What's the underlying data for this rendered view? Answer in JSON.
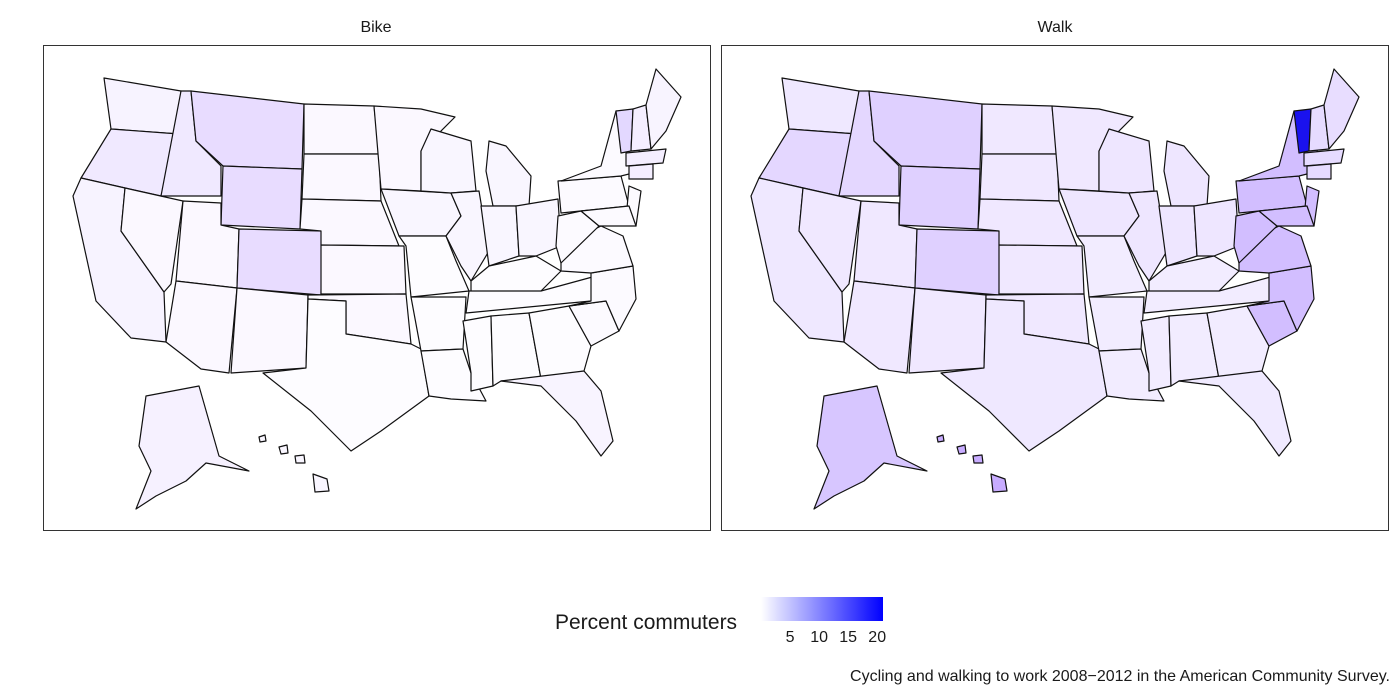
{
  "facets": [
    {
      "title": "Bike",
      "fills": {
        "pacific": "#f7f3ff",
        "northwest": "#f0e9ff",
        "mountain": "#e8dcff",
        "plains": "#fbf8ff",
        "south": "#fdfcff",
        "midwest": "#f9f6ff",
        "east": "#fcfaff",
        "newengland": "#f4eeff",
        "vermont": "#e3d8ff",
        "maine": "#f8f4ff",
        "texas": "#fdfcff",
        "alaska": "#f6f1ff",
        "hawaii": "#f9f6ff",
        "florida": "#f8f4ff"
      }
    },
    {
      "title": "Walk",
      "fills": {
        "pacific": "#efe8ff",
        "northwest": "#e4d7ff",
        "mountain": "#dfd0ff",
        "plains": "#f0e8ff",
        "south": "#f2ecff",
        "midwest": "#eee6ff",
        "east": "#d2beff",
        "newengland": "#e6dbff",
        "vermont": "#1a12ee",
        "maine": "#e8ddff",
        "texas": "#efe8ff",
        "alaska": "#d7c6ff",
        "hawaii": "#c8acff",
        "florida": "#f0eaff"
      }
    }
  ],
  "legend": {
    "title": "Percent commuters",
    "ticks": [
      "5",
      "10",
      "15",
      "20"
    ],
    "tick_values": [
      5,
      10,
      15,
      20
    ],
    "min": 0,
    "max": 21,
    "color_low": "#ffffff",
    "color_high": "#0000ff"
  },
  "caption": "Cycling and walking to work 2008−2012 in the American Community Survey."
}
